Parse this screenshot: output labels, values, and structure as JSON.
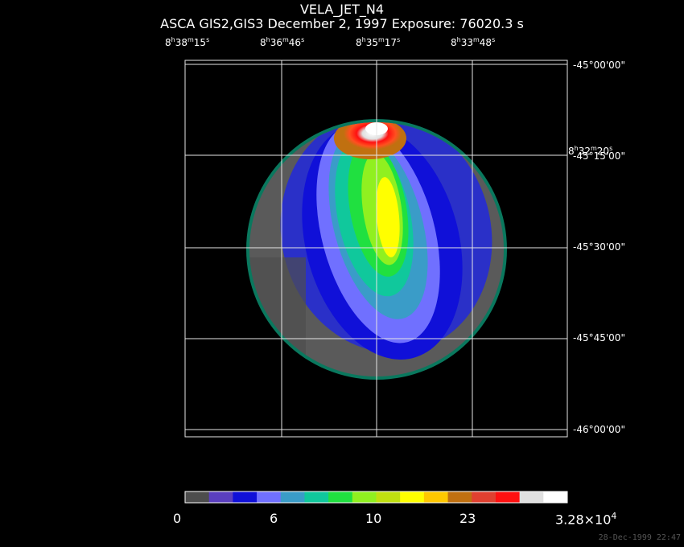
{
  "title": "VELA_JET_N4",
  "subtitle": "ASCA GIS2,GIS3 December 2, 1997 Exposure: 76020.3 s",
  "ra_labels": [
    {
      "h": "8",
      "m": "38",
      "s": "15"
    },
    {
      "h": "8",
      "m": "36",
      "s": "46"
    },
    {
      "h": "8",
      "m": "35",
      "s": "17"
    },
    {
      "h": "8",
      "m": "33",
      "s": "48"
    }
  ],
  "dec_labels": [
    "-45°00'00\"",
    "-45°15'00\"",
    "-45°30'00\"",
    "-45°45'00\"",
    "-46°00'00\""
  ],
  "overlay_ra_label": {
    "h": "8",
    "m": "32",
    "s": "20"
  },
  "colorbar": {
    "colors": [
      "#4d4d4d",
      "#5a3fbf",
      "#1010d8",
      "#7070ff",
      "#3a9cc8",
      "#10c89c",
      "#20e040",
      "#90f020",
      "#c0e010",
      "#ffff00",
      "#ffc800",
      "#c07010",
      "#e04030",
      "#ff1010",
      "#e0e0e0",
      "#ffffff"
    ],
    "labels": [
      "0",
      "6",
      "10",
      "23"
    ],
    "max_label_mantissa": "3.28×10",
    "max_label_exponent": "4"
  },
  "timestamp": "28-Dec-1999 22:47"
}
